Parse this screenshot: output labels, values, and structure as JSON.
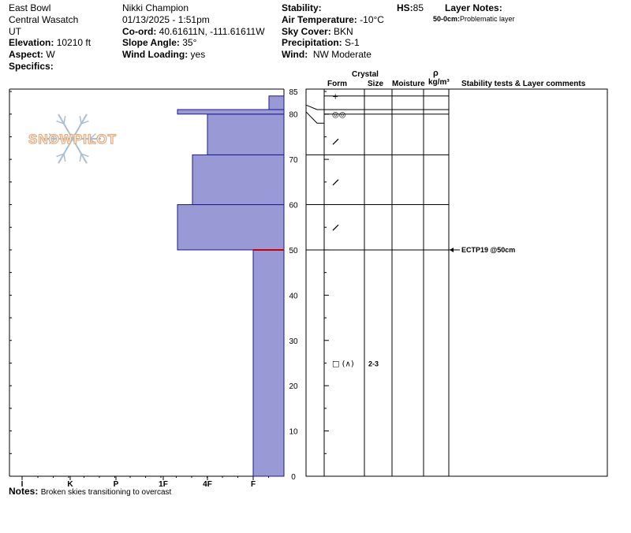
{
  "header": {
    "location": "East Bowl",
    "range": "Central Wasatch",
    "state": "UT",
    "elevation_label": "Elevation:",
    "elevation_value": "10210 ft",
    "aspect_label": "Aspect:",
    "aspect_value": "W",
    "specifics_label": "Specifics:",
    "observer": "Nikki Champion",
    "datetime": "01/13/2025 - 1:51pm",
    "coord_label": "Co-ord:",
    "coord_value": "40.61611N, -111.61611W",
    "slope_label": "Slope Angle:",
    "slope_value": "35°",
    "wind_loading_label": "Wind Loading:",
    "wind_loading_value": "yes",
    "stability_label": "Stability:",
    "air_temp_label": "Air Temperature:",
    "air_temp_value": "-10°C",
    "sky_label": "Sky Cover:",
    "sky_value": "BKN",
    "precip_label": "Precipitation:",
    "precip_value": "S-1",
    "wind_label": "Wind:",
    "wind_value": "NW Moderate",
    "hs_label": "HS:",
    "hs_value": "85",
    "layer_notes_label": "Layer Notes:",
    "layer_note_depth": "50-0cm:",
    "layer_note_text": "Problematic layer"
  },
  "columns": {
    "crystal": "Crystal",
    "form": "Form",
    "size": "Size",
    "moisture": "Moisture",
    "rho": "ρ",
    "density_unit": "kg/m³",
    "comments": "Stability tests & Layer comments"
  },
  "watermark": "SNOWPILOT",
  "colors": {
    "profile_fill": "#9999d6",
    "profile_stroke": "#1a1a8c",
    "weak_layer": "#cc0000",
    "watermark": "#e7a97c",
    "snowflake": "#a9bfd2"
  },
  "notes": {
    "label": "Notes:",
    "text": "Broken skies transitioning to overcast"
  },
  "chart_data": {
    "type": "snow-profile",
    "y_axis": {
      "label": "",
      "range": [
        0,
        85
      ],
      "ticks": [
        0,
        10,
        20,
        30,
        40,
        50,
        60,
        70,
        80,
        85
      ]
    },
    "x_axis": {
      "label": "",
      "hardness_ticks": [
        "I",
        "K",
        "P",
        "1F",
        "4F",
        "F"
      ],
      "note": "hand hardness increases to the left"
    },
    "hardness_layers": [
      {
        "bottom": 0,
        "top": 50,
        "hardness": "F"
      },
      {
        "bottom": 50,
        "top": 60,
        "hardness": "1F+"
      },
      {
        "bottom": 60,
        "top": 71,
        "hardness": "4F+"
      },
      {
        "bottom": 71,
        "top": 80,
        "hardness": "4F"
      },
      {
        "bottom": 80,
        "top": 81,
        "hardness": "1F+"
      },
      {
        "bottom": 81,
        "top": 84,
        "hardness": "F+"
      }
    ],
    "grain_layers": [
      {
        "depth": 84,
        "form": "+",
        "size": ""
      },
      {
        "depth": 80,
        "form": "◎◎",
        "size": ""
      },
      {
        "depth": 74,
        "form": "/",
        "size": ""
      },
      {
        "depth": 65,
        "form": "/",
        "size": ""
      },
      {
        "depth": 55,
        "form": "/",
        "size": ""
      },
      {
        "depth": 25,
        "form": "□ (∧)",
        "size": "2-3"
      }
    ],
    "stability_tests": [
      {
        "depth": 50,
        "text": "ECTP19 @50cm"
      }
    ],
    "weak_layer_depth": 50
  }
}
